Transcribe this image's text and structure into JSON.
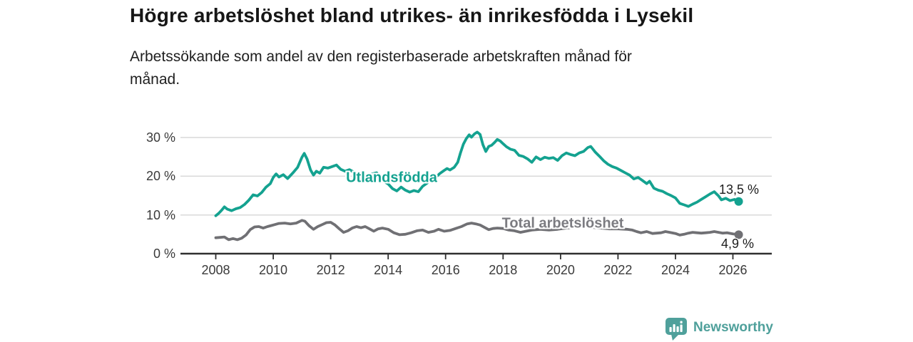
{
  "header": {
    "title": "Högre arbetslöshet bland utrikes- än inrikesfödda i Lysekil",
    "subtitle": "Arbetssökande som andel av den registerbaserade arbetskraften månad för månad.",
    "subtitle_lines": [
      "Arbetssökande som andel av den registerbaserade arbetskraften månad för",
      "månad."
    ]
  },
  "chart_data": {
    "type": "line",
    "title": "Högre arbetslöshet bland utrikes- än inrikesfödda i Lysekil",
    "subtitle": "Arbetssökande som andel av den registerbaserade arbetskraften månad för månad.",
    "unit": "%",
    "grid": true,
    "legend_position": "inline-labels",
    "xlim": [
      2006.8,
      2027.4
    ],
    "ylim": [
      0,
      33
    ],
    "grid_values": [
      10,
      20,
      30
    ],
    "y_ticks": [
      {
        "value": 30,
        "label": "30 %"
      },
      {
        "value": 20,
        "label": "20 %"
      },
      {
        "value": 10,
        "label": "10 %"
      },
      {
        "value": 0,
        "label": "0 %"
      }
    ],
    "x_ticks": [
      {
        "value": 2008,
        "label": "2008"
      },
      {
        "value": 2010,
        "label": "2010"
      },
      {
        "value": 2012,
        "label": "2012"
      },
      {
        "value": 2014,
        "label": "2014"
      },
      {
        "value": 2016,
        "label": "2016"
      },
      {
        "value": 2018,
        "label": "2018"
      },
      {
        "value": 2020,
        "label": "2020"
      },
      {
        "value": 2022,
        "label": "2022"
      },
      {
        "value": 2024,
        "label": "2024"
      },
      {
        "value": 2026,
        "label": "2026"
      }
    ],
    "series": [
      {
        "id": "utlandsfodda",
        "name": "Utlandsfödda",
        "color": "#14a290",
        "label_color": "#14a290",
        "end_label": "13,5 %",
        "end_value": 13.5,
        "points": [
          [
            2008.0,
            9.8
          ],
          [
            2008.1,
            10.4
          ],
          [
            2008.2,
            11.2
          ],
          [
            2008.3,
            12.1
          ],
          [
            2008.4,
            11.5
          ],
          [
            2008.55,
            11.1
          ],
          [
            2008.7,
            11.6
          ],
          [
            2008.85,
            11.9
          ],
          [
            2009.0,
            12.7
          ],
          [
            2009.15,
            13.8
          ],
          [
            2009.3,
            15.2
          ],
          [
            2009.45,
            14.9
          ],
          [
            2009.6,
            15.8
          ],
          [
            2009.75,
            17.2
          ],
          [
            2009.9,
            18.1
          ],
          [
            2010.0,
            19.7
          ],
          [
            2010.1,
            20.6
          ],
          [
            2010.2,
            19.8
          ],
          [
            2010.35,
            20.4
          ],
          [
            2010.5,
            19.4
          ],
          [
            2010.6,
            20.2
          ],
          [
            2010.7,
            21.0
          ],
          [
            2010.85,
            22.3
          ],
          [
            2011.0,
            24.9
          ],
          [
            2011.08,
            25.9
          ],
          [
            2011.18,
            24.4
          ],
          [
            2011.3,
            21.6
          ],
          [
            2011.4,
            20.3
          ],
          [
            2011.5,
            21.3
          ],
          [
            2011.62,
            20.8
          ],
          [
            2011.75,
            22.3
          ],
          [
            2011.9,
            22.1
          ],
          [
            2012.05,
            22.5
          ],
          [
            2012.2,
            22.9
          ],
          [
            2012.35,
            21.8
          ],
          [
            2012.5,
            21.3
          ],
          [
            2012.65,
            21.7
          ],
          [
            2012.8,
            21.1
          ],
          [
            2013.0,
            20.6
          ],
          [
            2013.2,
            20.2
          ],
          [
            2013.4,
            20.5
          ],
          [
            2013.6,
            20.9
          ],
          [
            2013.8,
            18.9
          ],
          [
            2014.0,
            18.0
          ],
          [
            2014.15,
            16.8
          ],
          [
            2014.3,
            16.2
          ],
          [
            2014.45,
            17.2
          ],
          [
            2014.6,
            16.4
          ],
          [
            2014.75,
            15.9
          ],
          [
            2014.9,
            16.3
          ],
          [
            2015.05,
            16.0
          ],
          [
            2015.2,
            17.4
          ],
          [
            2015.35,
            18.2
          ],
          [
            2015.5,
            19.0
          ],
          [
            2015.65,
            19.7
          ],
          [
            2015.8,
            20.7
          ],
          [
            2015.95,
            21.5
          ],
          [
            2016.05,
            22.0
          ],
          [
            2016.15,
            21.6
          ],
          [
            2016.3,
            22.3
          ],
          [
            2016.42,
            23.6
          ],
          [
            2016.52,
            26.1
          ],
          [
            2016.62,
            28.3
          ],
          [
            2016.72,
            29.7
          ],
          [
            2016.82,
            30.7
          ],
          [
            2016.9,
            30.1
          ],
          [
            2017.0,
            30.9
          ],
          [
            2017.1,
            31.4
          ],
          [
            2017.2,
            30.8
          ],
          [
            2017.3,
            28.1
          ],
          [
            2017.4,
            26.4
          ],
          [
            2017.5,
            27.7
          ],
          [
            2017.6,
            28.0
          ],
          [
            2017.7,
            28.7
          ],
          [
            2017.8,
            29.5
          ],
          [
            2017.9,
            29.1
          ],
          [
            2018.0,
            28.4
          ],
          [
            2018.12,
            27.6
          ],
          [
            2018.25,
            27.0
          ],
          [
            2018.4,
            26.7
          ],
          [
            2018.55,
            25.4
          ],
          [
            2018.7,
            25.1
          ],
          [
            2018.85,
            24.5
          ],
          [
            2019.0,
            23.6
          ],
          [
            2019.15,
            25.0
          ],
          [
            2019.3,
            24.3
          ],
          [
            2019.45,
            24.9
          ],
          [
            2019.6,
            24.6
          ],
          [
            2019.75,
            24.8
          ],
          [
            2019.9,
            24.1
          ],
          [
            2020.05,
            25.3
          ],
          [
            2020.2,
            26.0
          ],
          [
            2020.35,
            25.6
          ],
          [
            2020.5,
            25.3
          ],
          [
            2020.65,
            26.0
          ],
          [
            2020.8,
            26.4
          ],
          [
            2020.95,
            27.4
          ],
          [
            2021.05,
            27.7
          ],
          [
            2021.2,
            26.3
          ],
          [
            2021.35,
            25.2
          ],
          [
            2021.5,
            24.0
          ],
          [
            2021.65,
            23.1
          ],
          [
            2021.8,
            22.5
          ],
          [
            2021.95,
            22.1
          ],
          [
            2022.1,
            21.5
          ],
          [
            2022.25,
            20.9
          ],
          [
            2022.4,
            20.3
          ],
          [
            2022.55,
            19.3
          ],
          [
            2022.7,
            19.7
          ],
          [
            2022.85,
            18.9
          ],
          [
            2023.0,
            18.1
          ],
          [
            2023.1,
            18.7
          ],
          [
            2023.25,
            16.9
          ],
          [
            2023.4,
            16.4
          ],
          [
            2023.55,
            16.1
          ],
          [
            2023.7,
            15.5
          ],
          [
            2023.85,
            15.0
          ],
          [
            2024.0,
            14.4
          ],
          [
            2024.15,
            13.0
          ],
          [
            2024.3,
            12.6
          ],
          [
            2024.45,
            12.2
          ],
          [
            2024.6,
            12.8
          ],
          [
            2024.75,
            13.3
          ],
          [
            2024.9,
            14.0
          ],
          [
            2025.05,
            14.7
          ],
          [
            2025.2,
            15.4
          ],
          [
            2025.35,
            16.0
          ],
          [
            2025.5,
            14.9
          ],
          [
            2025.6,
            13.9
          ],
          [
            2025.75,
            14.3
          ],
          [
            2025.9,
            13.7
          ],
          [
            2026.05,
            14.0
          ],
          [
            2026.2,
            13.5
          ]
        ]
      },
      {
        "id": "total",
        "name": "Total arbetslöshet",
        "color": "#707074",
        "label_color": "#7c7c81",
        "end_label": "4,9 %",
        "end_value": 4.9,
        "points": [
          [
            2008.0,
            4.1
          ],
          [
            2008.15,
            4.2
          ],
          [
            2008.3,
            4.3
          ],
          [
            2008.45,
            3.6
          ],
          [
            2008.6,
            3.9
          ],
          [
            2008.75,
            3.6
          ],
          [
            2008.9,
            4.0
          ],
          [
            2009.05,
            4.8
          ],
          [
            2009.2,
            6.2
          ],
          [
            2009.35,
            6.9
          ],
          [
            2009.5,
            7.0
          ],
          [
            2009.65,
            6.6
          ],
          [
            2009.8,
            7.0
          ],
          [
            2010.0,
            7.4
          ],
          [
            2010.2,
            7.8
          ],
          [
            2010.4,
            7.9
          ],
          [
            2010.6,
            7.7
          ],
          [
            2010.8,
            7.9
          ],
          [
            2011.0,
            8.6
          ],
          [
            2011.1,
            8.4
          ],
          [
            2011.25,
            7.2
          ],
          [
            2011.4,
            6.3
          ],
          [
            2011.55,
            7.0
          ],
          [
            2011.7,
            7.5
          ],
          [
            2011.85,
            8.0
          ],
          [
            2012.0,
            8.1
          ],
          [
            2012.15,
            7.4
          ],
          [
            2012.3,
            6.4
          ],
          [
            2012.45,
            5.5
          ],
          [
            2012.6,
            5.9
          ],
          [
            2012.75,
            6.6
          ],
          [
            2012.9,
            7.0
          ],
          [
            2013.05,
            6.7
          ],
          [
            2013.2,
            7.0
          ],
          [
            2013.35,
            6.4
          ],
          [
            2013.5,
            5.8
          ],
          [
            2013.65,
            6.4
          ],
          [
            2013.8,
            6.6
          ],
          [
            2014.0,
            6.3
          ],
          [
            2014.2,
            5.4
          ],
          [
            2014.4,
            4.9
          ],
          [
            2014.6,
            5.0
          ],
          [
            2014.8,
            5.4
          ],
          [
            2015.0,
            5.9
          ],
          [
            2015.2,
            6.1
          ],
          [
            2015.4,
            5.5
          ],
          [
            2015.6,
            5.8
          ],
          [
            2015.75,
            6.3
          ],
          [
            2015.95,
            5.8
          ],
          [
            2016.15,
            6.0
          ],
          [
            2016.35,
            6.5
          ],
          [
            2016.55,
            7.0
          ],
          [
            2016.75,
            7.7
          ],
          [
            2016.9,
            7.9
          ],
          [
            2017.05,
            7.7
          ],
          [
            2017.2,
            7.4
          ],
          [
            2017.35,
            6.8
          ],
          [
            2017.5,
            6.2
          ],
          [
            2017.65,
            6.5
          ],
          [
            2017.8,
            6.6
          ],
          [
            2018.0,
            6.5
          ],
          [
            2018.2,
            6.1
          ],
          [
            2018.4,
            5.9
          ],
          [
            2018.6,
            5.5
          ],
          [
            2018.8,
            5.8
          ],
          [
            2019.0,
            6.1
          ],
          [
            2019.3,
            6.3
          ],
          [
            2019.6,
            6.1
          ],
          [
            2019.9,
            6.3
          ],
          [
            2020.2,
            6.6
          ],
          [
            2020.5,
            6.8
          ],
          [
            2020.8,
            7.0
          ],
          [
            2021.1,
            6.8
          ],
          [
            2021.4,
            6.6
          ],
          [
            2021.7,
            6.4
          ],
          [
            2022.0,
            6.4
          ],
          [
            2022.3,
            6.3
          ],
          [
            2022.5,
            6.1
          ],
          [
            2022.65,
            5.7
          ],
          [
            2022.8,
            5.4
          ],
          [
            2023.0,
            5.7
          ],
          [
            2023.2,
            5.2
          ],
          [
            2023.35,
            5.3
          ],
          [
            2023.5,
            5.4
          ],
          [
            2023.65,
            5.7
          ],
          [
            2023.8,
            5.5
          ],
          [
            2024.0,
            5.2
          ],
          [
            2024.15,
            4.8
          ],
          [
            2024.3,
            5.0
          ],
          [
            2024.45,
            5.3
          ],
          [
            2024.6,
            5.5
          ],
          [
            2024.75,
            5.4
          ],
          [
            2024.9,
            5.3
          ],
          [
            2025.05,
            5.4
          ],
          [
            2025.2,
            5.5
          ],
          [
            2025.35,
            5.7
          ],
          [
            2025.5,
            5.5
          ],
          [
            2025.65,
            5.3
          ],
          [
            2025.8,
            5.4
          ],
          [
            2026.0,
            5.1
          ],
          [
            2026.2,
            4.9
          ]
        ]
      }
    ]
  },
  "branding": {
    "logo_text": "Newsworthy",
    "logo_color": "#4fa09b",
    "logo_icon": "newsworthy-chart-bubble-badge"
  }
}
